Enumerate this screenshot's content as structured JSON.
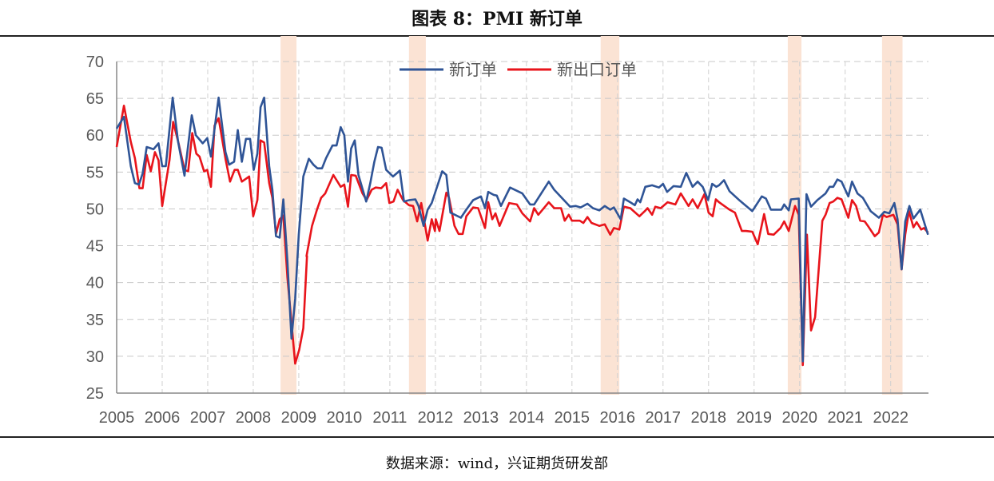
{
  "title": "图表 8：PMI 新订单",
  "source": "数据来源：wind，兴证期货研发部",
  "chart_data": {
    "type": "line",
    "title": "图表 8：PMI 新订单",
    "xlabel": "",
    "ylabel": "",
    "xlim": [
      2005,
      2022.83
    ],
    "ylim": [
      25,
      70
    ],
    "y_ticks": [
      "25",
      "30",
      "35",
      "40",
      "45",
      "50",
      "55",
      "60",
      "65",
      "70"
    ],
    "x_ticks": [
      "2005",
      "2006",
      "2007",
      "2008",
      "2009",
      "2010",
      "2011",
      "2012",
      "2013",
      "2014",
      "2015",
      "2016",
      "2017",
      "2018",
      "2019",
      "2020",
      "2021",
      "2022"
    ],
    "grid": true,
    "legend_position": "top",
    "highlight_bands": [
      [
        2008.6,
        2008.95
      ],
      [
        2011.42,
        2011.79
      ],
      [
        2015.63,
        2016.04
      ],
      [
        2019.74,
        2020.04
      ],
      [
        2021.81,
        2022.26
      ]
    ],
    "band_color": "#fbe3d4",
    "series": [
      {
        "name": "新订单",
        "color": "#2f5496",
        "x": [
          2005.0,
          2005.16,
          2005.31,
          2005.4,
          2005.49,
          2005.57,
          2005.66,
          2005.81,
          2005.92,
          2006.0,
          2006.08,
          2006.23,
          2006.35,
          2006.49,
          2006.65,
          2006.74,
          2006.89,
          2006.99,
          2007.07,
          2007.24,
          2007.39,
          2007.47,
          2007.58,
          2007.66,
          2007.75,
          2007.84,
          2007.93,
          2008.01,
          2008.09,
          2008.16,
          2008.24,
          2008.35,
          2008.42,
          2008.5,
          2008.58,
          2008.66,
          2008.75,
          2008.84,
          2008.92,
          2009.0,
          2009.1,
          2009.22,
          2009.32,
          2009.41,
          2009.51,
          2009.6,
          2009.74,
          2009.83,
          2009.92,
          2010.0,
          2010.08,
          2010.15,
          2010.23,
          2010.31,
          2010.48,
          2010.57,
          2010.66,
          2010.74,
          2010.82,
          2010.92,
          2011.07,
          2011.22,
          2011.31,
          2011.43,
          2011.56,
          2011.63,
          2011.74,
          2011.83,
          2011.92,
          2012.15,
          2012.24,
          2012.33,
          2012.56,
          2012.68,
          2012.83,
          2013.0,
          2013.09,
          2013.16,
          2013.28,
          2013.35,
          2013.44,
          2013.64,
          2013.91,
          2014.08,
          2014.17,
          2014.49,
          2014.61,
          2014.96,
          2015.08,
          2015.19,
          2015.34,
          2015.46,
          2015.6,
          2015.72,
          2015.84,
          2015.92,
          2016.07,
          2016.14,
          2016.28,
          2016.38,
          2016.44,
          2016.5,
          2016.61,
          2016.76,
          2016.91,
          2017.0,
          2017.09,
          2017.23,
          2017.39,
          2017.51,
          2017.65,
          2017.76,
          2017.87,
          2017.99,
          2018.08,
          2018.17,
          2018.23,
          2018.34,
          2018.46,
          2018.69,
          2018.96,
          2019.17,
          2019.26,
          2019.37,
          2019.6,
          2019.66,
          2019.76,
          2019.81,
          2019.98,
          2020.07,
          2020.15,
          2020.25,
          2020.39,
          2020.57,
          2020.66,
          2020.74,
          2020.83,
          2020.92,
          2021.07,
          2021.15,
          2021.27,
          2021.39,
          2021.56,
          2021.74,
          2021.86,
          2021.97,
          2022.08,
          2022.15,
          2022.24,
          2022.32,
          2022.41,
          2022.5,
          2022.65,
          2022.82
        ],
        "y": [
          60.9,
          62.5,
          55.8,
          53.5,
          53.3,
          54.8,
          58.4,
          58.1,
          58.9,
          55.8,
          55.8,
          65.1,
          59.1,
          54.5,
          62.7,
          60.0,
          58.9,
          59.6,
          57.1,
          65.1,
          57.7,
          56.0,
          56.4,
          60.7,
          56.4,
          59.5,
          59.5,
          55.3,
          57.5,
          63.8,
          65.1,
          55.8,
          52.6,
          46.3,
          46.1,
          51.3,
          42.9,
          32.4,
          37.8,
          46.5,
          54.4,
          56.8,
          56.0,
          55.5,
          55.5,
          56.9,
          58.6,
          58.6,
          61.1,
          60.0,
          53.7,
          58.2,
          59.3,
          54.6,
          51.0,
          53.5,
          56.4,
          58.4,
          58.3,
          55.3,
          54.4,
          55.2,
          51.0,
          51.2,
          51.3,
          50.4,
          47.7,
          49.9,
          50.8,
          55.1,
          54.6,
          49.5,
          48.8,
          49.9,
          51.2,
          51.7,
          50.1,
          52.3,
          51.9,
          51.8,
          50.4,
          52.9,
          52.1,
          50.6,
          50.6,
          53.7,
          52.6,
          50.3,
          50.4,
          50.2,
          50.7,
          50.1,
          49.8,
          50.4,
          49.9,
          50.2,
          48.6,
          51.4,
          50.9,
          50.5,
          51.3,
          50.9,
          53.0,
          53.2,
          52.9,
          53.4,
          52.3,
          53.1,
          53.0,
          54.9,
          53.0,
          53.7,
          53.0,
          51.2,
          53.4,
          53.0,
          53.2,
          53.9,
          52.4,
          51.1,
          49.7,
          51.7,
          51.4,
          49.9,
          49.9,
          50.6,
          49.8,
          51.3,
          51.4,
          29.3,
          52.0,
          50.3,
          51.2,
          52.1,
          53.0,
          53.0,
          54.0,
          53.7,
          51.7,
          53.7,
          52.1,
          51.5,
          49.7,
          48.8,
          49.6,
          49.4,
          50.8,
          48.6,
          41.8,
          48.3,
          50.4,
          48.7,
          49.9,
          46.5
        ]
      },
      {
        "name": "新出口订单",
        "color": "#e8141b",
        "x": [
          2005.0,
          2005.16,
          2005.31,
          2005.4,
          2005.5,
          2005.57,
          2005.66,
          2005.75,
          2005.84,
          2005.92,
          2006.0,
          2006.16,
          2006.24,
          2006.36,
          2006.49,
          2006.57,
          2006.66,
          2006.75,
          2006.82,
          2006.92,
          2006.99,
          2007.07,
          2007.15,
          2007.24,
          2007.39,
          2007.49,
          2007.59,
          2007.66,
          2007.75,
          2007.91,
          2008.0,
          2008.09,
          2008.16,
          2008.24,
          2008.35,
          2008.42,
          2008.5,
          2008.58,
          2008.66,
          2008.75,
          2008.92,
          2009.01,
          2009.1,
          2009.18,
          2009.17,
          2009.29,
          2009.4,
          2009.49,
          2009.58,
          2009.76,
          2009.92,
          2010.0,
          2010.08,
          2010.15,
          2010.25,
          2010.4,
          2010.49,
          2010.6,
          2010.69,
          2010.81,
          2010.92,
          2010.99,
          2011.08,
          2011.17,
          2011.29,
          2011.42,
          2011.51,
          2011.6,
          2011.69,
          2011.83,
          2011.92,
          2011.99,
          2012.01,
          2012.09,
          2012.24,
          2012.3,
          2012.42,
          2012.51,
          2012.6,
          2012.68,
          2012.83,
          2012.94,
          2013.09,
          2013.16,
          2013.25,
          2013.32,
          2013.41,
          2013.62,
          2013.79,
          2013.91,
          2014.08,
          2014.17,
          2014.26,
          2014.49,
          2014.61,
          2014.76,
          2014.84,
          2014.93,
          2015.0,
          2015.17,
          2015.25,
          2015.34,
          2015.43,
          2015.6,
          2015.72,
          2015.84,
          2015.92,
          2016.04,
          2016.14,
          2016.28,
          2016.48,
          2016.6,
          2016.66,
          2016.76,
          2016.83,
          2016.95,
          2017.1,
          2017.27,
          2017.39,
          2017.56,
          2017.65,
          2017.76,
          2017.91,
          2018.0,
          2018.09,
          2018.16,
          2018.23,
          2018.46,
          2018.58,
          2018.73,
          2018.82,
          2018.96,
          2019.08,
          2019.22,
          2019.31,
          2019.43,
          2019.58,
          2019.66,
          2019.76,
          2019.9,
          2019.98,
          2020.07,
          2020.16,
          2020.25,
          2020.34,
          2020.5,
          2020.57,
          2020.66,
          2020.74,
          2020.83,
          2020.92,
          2021.07,
          2021.15,
          2021.24,
          2021.33,
          2021.43,
          2021.5,
          2021.65,
          2021.74,
          2021.83,
          2021.91,
          2022.06,
          2022.15,
          2022.24,
          2022.32,
          2022.4,
          2022.5,
          2022.57,
          2022.67,
          2022.73,
          2022.82
        ],
        "y": [
          58.4,
          64.0,
          59.1,
          56.9,
          52.8,
          52.8,
          57.3,
          55.1,
          57.7,
          56.6,
          50.4,
          56.6,
          61.8,
          58.9,
          55.3,
          55.1,
          60.3,
          57.5,
          57.1,
          55.1,
          55.3,
          53.0,
          61.3,
          62.3,
          56.8,
          53.7,
          55.3,
          55.3,
          53.7,
          54.4,
          49.0,
          51.2,
          59.3,
          59.0,
          53.5,
          51.5,
          46.6,
          48.6,
          49.1,
          40.7,
          29.0,
          30.9,
          33.8,
          43.6,
          43.6,
          47.7,
          49.9,
          51.5,
          52.1,
          54.6,
          53.0,
          53.3,
          50.3,
          54.6,
          54.5,
          52.1,
          51.2,
          52.6,
          52.9,
          52.8,
          53.5,
          50.8,
          51.0,
          52.6,
          51.2,
          50.5,
          50.4,
          48.3,
          50.8,
          45.7,
          48.6,
          47.0,
          48.6,
          47.0,
          52.2,
          51.5,
          47.7,
          46.6,
          46.6,
          49.0,
          50.2,
          50.1,
          47.4,
          50.9,
          48.6,
          49.4,
          47.7,
          50.8,
          50.6,
          49.4,
          48.3,
          50.1,
          49.2,
          50.9,
          50.1,
          50.1,
          48.4,
          49.2,
          48.4,
          48.4,
          48.1,
          48.9,
          48.1,
          47.7,
          47.9,
          46.5,
          47.4,
          47.2,
          50.3,
          50.1,
          49.0,
          49.7,
          50.1,
          49.2,
          50.3,
          50.1,
          50.9,
          50.6,
          52.1,
          50.4,
          51.3,
          50.1,
          52.0,
          49.5,
          49.0,
          51.3,
          50.9,
          49.9,
          49.5,
          47.0,
          47.0,
          46.9,
          45.2,
          49.3,
          46.6,
          46.5,
          47.4,
          48.3,
          47.0,
          50.4,
          49.2,
          28.8,
          46.5,
          33.5,
          35.3,
          48.4,
          49.2,
          50.8,
          51.0,
          51.5,
          51.3,
          48.8,
          51.2,
          50.4,
          48.4,
          48.3,
          47.7,
          46.3,
          46.8,
          49.2,
          48.9,
          49.2,
          47.9,
          41.8,
          46.5,
          49.7,
          47.5,
          48.2,
          47.2,
          47.4,
          46.8
        ]
      }
    ]
  }
}
